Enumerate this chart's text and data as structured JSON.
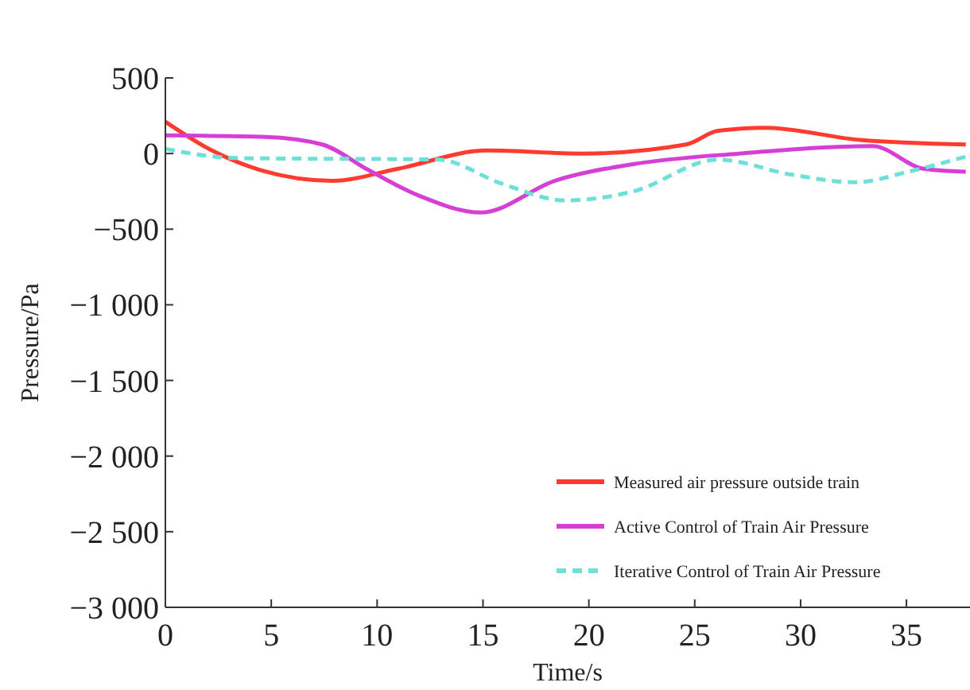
{
  "chart_data": {
    "type": "line",
    "xlabel": "Time/s",
    "ylabel": "Pressure/Pa",
    "x": [
      0,
      2.2,
      4.5,
      7.9,
      11,
      15.2,
      19.7,
      24.6,
      26.1,
      28.3,
      32.8,
      37.8
    ],
    "xlim": [
      0,
      38
    ],
    "xticks": [
      0,
      5,
      10,
      15,
      20,
      25,
      30,
      35
    ],
    "ylim": [
      -3000,
      500
    ],
    "yticks": [
      500,
      0,
      {
        "value": -500,
        "label": "−500"
      },
      {
        "value": -1000,
        "label": "−1 000"
      },
      {
        "value": -1500,
        "label": "−1 500"
      },
      {
        "value": -2000,
        "label": "−2 000"
      },
      {
        "value": -2500,
        "label": "−2 500"
      },
      {
        "value": -3000,
        "label": "−3 000"
      }
    ],
    "grid": false,
    "legend": "bottom right",
    "line_style": "solid",
    "marker": "none",
    "series": [
      {
        "name": "Measured air pressure outside train",
        "color": "#ff3b30",
        "values": [
          210,
          20,
          -110,
          -180,
          -100,
          20,
          0,
          60,
          150,
          170,
          90,
          60
        ]
      },
      {
        "name": "Active Control of Train Air Pressure",
        "color": "#d63fd6",
        "x": [
          0,
          4.7,
          7.4,
          9.6,
          12,
          14.9,
          18.4,
          22.1,
          27.1,
          33.4,
          35.8,
          37.8
        ],
        "values": [
          120,
          110,
          60,
          -110,
          -280,
          -390,
          -180,
          -70,
          0,
          50,
          -100,
          -120
        ]
      },
      {
        "name": "Iterative Control of Train Air Pressure",
        "color": "#6ee0d8",
        "line_style": "dashed",
        "x": [
          0,
          3.4,
          12.9,
          15.9,
          18.9,
          22.1,
          26.1,
          29.6,
          32.6,
          35.1,
          37.8
        ],
        "values": [
          30,
          -30,
          -40,
          -200,
          -310,
          -250,
          -40,
          -140,
          -190,
          -120,
          -20
        ]
      }
    ]
  }
}
